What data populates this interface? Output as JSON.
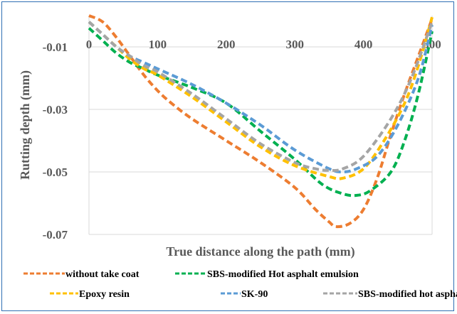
{
  "chart_data": {
    "type": "line",
    "title": "",
    "xlabel": "True distance along the path (mm)",
    "ylabel": "Rutting depth (mm)",
    "xlim": [
      0,
      500
    ],
    "ylim": [
      -0.07,
      0
    ],
    "x_ticks": [
      0,
      100,
      200,
      300,
      400,
      500
    ],
    "x_tick_labels": [
      "0",
      "100",
      "200",
      "300",
      "400",
      "500"
    ],
    "y_ticks": [
      -0.01,
      -0.03,
      -0.05,
      -0.07
    ],
    "y_tick_labels": [
      "-0.01",
      "-0.03",
      "-0.05",
      "-0.07"
    ],
    "grid": "horizontal",
    "legend_position": "bottom",
    "line_style": "dashed",
    "series": [
      {
        "name": "without take coat",
        "color": "#ed7d31",
        "points": [
          [
            0,
            0
          ],
          [
            20,
            -0.002
          ],
          [
            40,
            -0.007
          ],
          [
            60,
            -0.013
          ],
          [
            80,
            -0.019
          ],
          [
            100,
            -0.024
          ],
          [
            120,
            -0.028
          ],
          [
            150,
            -0.033
          ],
          [
            200,
            -0.04
          ],
          [
            250,
            -0.047
          ],
          [
            300,
            -0.055
          ],
          [
            330,
            -0.062
          ],
          [
            350,
            -0.066
          ],
          [
            360,
            -0.0675
          ],
          [
            380,
            -0.0665
          ],
          [
            400,
            -0.062
          ],
          [
            420,
            -0.052
          ],
          [
            440,
            -0.038
          ],
          [
            460,
            -0.025
          ],
          [
            480,
            -0.013
          ],
          [
            500,
            -0.001
          ]
        ]
      },
      {
        "name": "SBS-modified Hot asphalt emulsion",
        "color": "#00b050",
        "points": [
          [
            0,
            -0.004
          ],
          [
            20,
            -0.008
          ],
          [
            40,
            -0.012
          ],
          [
            60,
            -0.015
          ],
          [
            80,
            -0.017
          ],
          [
            100,
            -0.019
          ],
          [
            150,
            -0.023
          ],
          [
            200,
            -0.028
          ],
          [
            250,
            -0.037
          ],
          [
            300,
            -0.046
          ],
          [
            340,
            -0.054
          ],
          [
            370,
            -0.057
          ],
          [
            390,
            -0.0575
          ],
          [
            410,
            -0.056
          ],
          [
            440,
            -0.05
          ],
          [
            460,
            -0.04
          ],
          [
            480,
            -0.025
          ],
          [
            500,
            -0.005
          ]
        ]
      },
      {
        "name": "Epoxy resin",
        "color": "#ffc000",
        "points": [
          [
            0,
            -0.002
          ],
          [
            20,
            -0.006
          ],
          [
            40,
            -0.01
          ],
          [
            60,
            -0.014
          ],
          [
            80,
            -0.017
          ],
          [
            100,
            -0.019
          ],
          [
            150,
            -0.026
          ],
          [
            200,
            -0.034
          ],
          [
            250,
            -0.042
          ],
          [
            300,
            -0.048
          ],
          [
            350,
            -0.0515
          ],
          [
            370,
            -0.052
          ],
          [
            400,
            -0.049
          ],
          [
            430,
            -0.04
          ],
          [
            460,
            -0.028
          ],
          [
            480,
            -0.016
          ],
          [
            500,
            -0.0005
          ]
        ]
      },
      {
        "name": "SK-90",
        "color": "#5b9bd5",
        "points": [
          [
            0,
            -0.002
          ],
          [
            20,
            -0.006
          ],
          [
            40,
            -0.01
          ],
          [
            60,
            -0.013
          ],
          [
            80,
            -0.015
          ],
          [
            100,
            -0.017
          ],
          [
            150,
            -0.022
          ],
          [
            200,
            -0.028
          ],
          [
            250,
            -0.035
          ],
          [
            300,
            -0.043
          ],
          [
            350,
            -0.049
          ],
          [
            370,
            -0.05
          ],
          [
            390,
            -0.049
          ],
          [
            420,
            -0.045
          ],
          [
            450,
            -0.035
          ],
          [
            480,
            -0.02
          ],
          [
            500,
            -0.003
          ]
        ]
      },
      {
        "name": "SBS-modified hot asphalt",
        "color": "#a5a5a5",
        "points": [
          [
            0,
            -0.002
          ],
          [
            20,
            -0.006
          ],
          [
            40,
            -0.01
          ],
          [
            60,
            -0.013
          ],
          [
            80,
            -0.016
          ],
          [
            100,
            -0.018
          ],
          [
            150,
            -0.025
          ],
          [
            200,
            -0.033
          ],
          [
            250,
            -0.041
          ],
          [
            300,
            -0.047
          ],
          [
            330,
            -0.049
          ],
          [
            350,
            -0.0495
          ],
          [
            370,
            -0.049
          ],
          [
            400,
            -0.045
          ],
          [
            440,
            -0.033
          ],
          [
            470,
            -0.02
          ],
          [
            500,
            -0.002
          ]
        ]
      }
    ]
  }
}
